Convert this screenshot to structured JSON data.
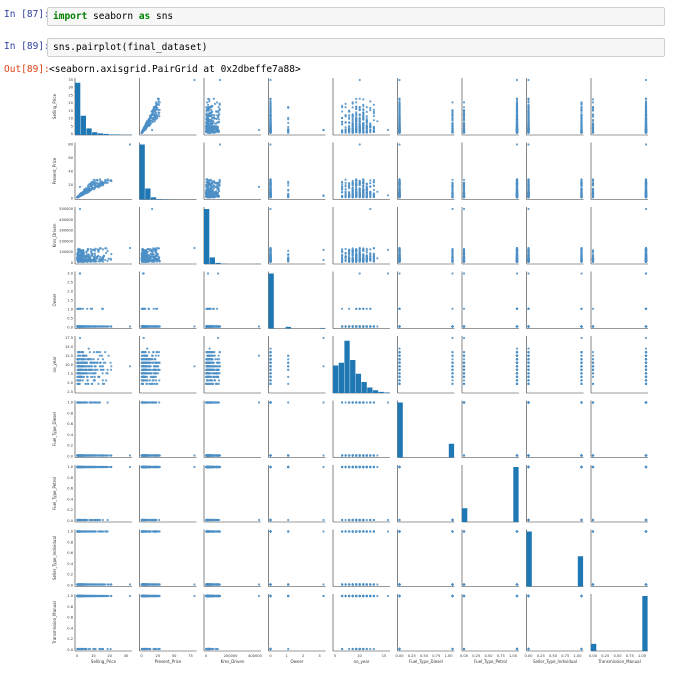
{
  "cells": [
    {
      "prompt": "In [87]:",
      "code_tokens": [
        {
          "text": "import",
          "kw": true
        },
        {
          "text": " seaborn ",
          "kw": false
        },
        {
          "text": "as",
          "kw": true
        },
        {
          "text": " sns",
          "kw": false
        }
      ]
    },
    {
      "prompt": "In [89]:",
      "code": "sns.pairplot(final_dataset)"
    }
  ],
  "output": {
    "prompt": "Out[89]:",
    "text": "<seaborn.axisgrid.PairGrid at 0x2dbeffe7a88>"
  },
  "colors": {
    "bar": "#1f77b4",
    "point": "#4c8fc6",
    "in_prompt": "#303f9f",
    "out_prompt": "#d84315"
  },
  "chart_data": {
    "type": "scatter",
    "variables": [
      "Selling_Price",
      "Present_Price",
      "Kms_Driven",
      "Owner",
      "no_year",
      "Fuel_Type_Diesel",
      "Fuel_Type_Petrol",
      "Seller_Type_Individual",
      "Transmission_Manual"
    ],
    "ranges": [
      [
        0,
        35
      ],
      [
        0,
        92
      ],
      [
        0,
        500000
      ],
      [
        0,
        3
      ],
      [
        2,
        17
      ],
      [
        0,
        1
      ],
      [
        0,
        1
      ],
      [
        0,
        1
      ],
      [
        0,
        1
      ]
    ],
    "x_ticks": [
      [
        "0",
        "10",
        "20",
        "30"
      ],
      [
        "0",
        "25",
        "50",
        "75"
      ],
      [
        "0",
        "200000",
        "400000"
      ],
      [
        "0",
        "1",
        "2",
        "3"
      ],
      [
        "5",
        "10",
        "15"
      ],
      [
        "0.00",
        "0.25",
        "0.50",
        "0.75",
        "1.00"
      ],
      [
        "0.00",
        "0.25",
        "0.50",
        "0.75",
        "1.00"
      ],
      [
        "0.00",
        "0.25",
        "0.50",
        "0.75",
        "1.00"
      ],
      [
        "0.00",
        "0.25",
        "0.50",
        "0.75",
        "1.00"
      ]
    ],
    "y_ticks": [
      [
        "0",
        "5",
        "10",
        "15",
        "20",
        "25",
        "30",
        "35"
      ],
      [
        "0",
        "20",
        "40",
        "60",
        "80"
      ],
      [
        "0",
        "100000",
        "200000",
        "300000",
        "400000",
        "500000"
      ],
      [
        "0.0",
        "0.5",
        "1.0",
        "1.5",
        "2.0",
        "2.5",
        "3.0"
      ],
      [
        "2.5",
        "5.0",
        "7.5",
        "10.0",
        "12.5",
        "15.0",
        "17.5"
      ],
      [
        "0.0",
        "0.2",
        "0.4",
        "0.6",
        "0.8",
        "1.0"
      ],
      [
        "0.0",
        "0.2",
        "0.4",
        "0.6",
        "0.8",
        "1.0"
      ],
      [
        "0.0",
        "0.2",
        "0.4",
        "0.6",
        "0.8",
        "1.0"
      ],
      [
        "0.0",
        "0.2",
        "0.4",
        "0.6",
        "0.8",
        "1.0"
      ]
    ],
    "histograms": [
      [
        0.95,
        0.35,
        0.12,
        0.05,
        0.03,
        0.02,
        0.01,
        0.01,
        0.005,
        0.005
      ],
      [
        1.0,
        0.2,
        0.04,
        0.01,
        0.005,
        0.002,
        0.001,
        0.001,
        0,
        0.002
      ],
      [
        1.0,
        0.12,
        0.02,
        0.005,
        0,
        0,
        0,
        0,
        0,
        0.003
      ],
      [
        1.0,
        0,
        0,
        0.03,
        0,
        0,
        0,
        0,
        0,
        0.01
      ],
      [
        0.5,
        0.55,
        0.95,
        0.6,
        0.35,
        0.2,
        0.1,
        0.05,
        0.02,
        0.01
      ],
      [
        1.0,
        0,
        0,
        0,
        0,
        0,
        0,
        0,
        0,
        0.25
      ],
      [
        0.25,
        0,
        0,
        0,
        0,
        0,
        0,
        0,
        0,
        1.0
      ],
      [
        1.0,
        0,
        0,
        0,
        0,
        0,
        0,
        0,
        0,
        0.55
      ],
      [
        0.13,
        0,
        0,
        0,
        0,
        0,
        0,
        0,
        0,
        1.0
      ]
    ],
    "n_points": 301,
    "grid": false,
    "legend": "none"
  }
}
